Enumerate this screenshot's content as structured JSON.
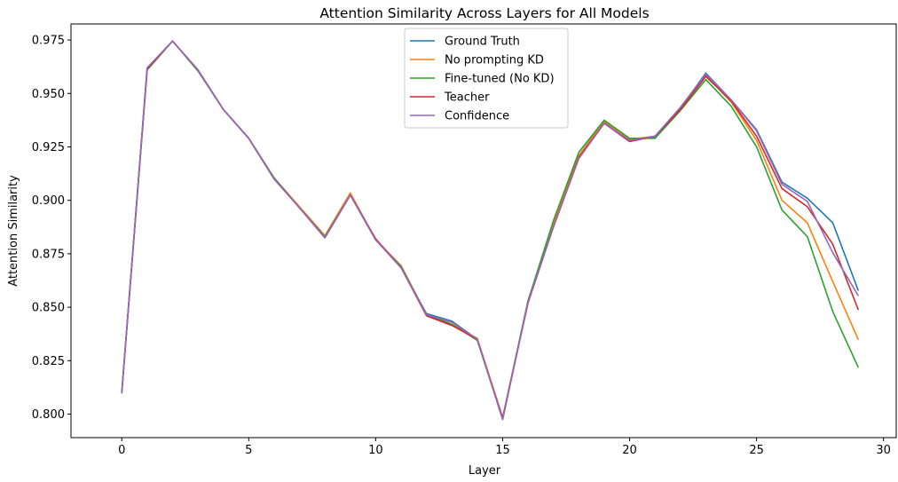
{
  "chart_data": {
    "type": "line",
    "title": "Attention Similarity Across Layers for All Models",
    "xlabel": "Layer",
    "ylabel": "Attention Similarity",
    "xlim": [
      -2,
      30.5
    ],
    "ylim": [
      0.789,
      0.9825
    ],
    "xticks": [
      0,
      5,
      10,
      15,
      20,
      25,
      30
    ],
    "yticks": [
      0.8,
      0.825,
      0.85,
      0.875,
      0.9,
      0.925,
      0.95,
      0.975
    ],
    "ytick_labels": [
      "0.800",
      "0.825",
      "0.850",
      "0.875",
      "0.900",
      "0.925",
      "0.950",
      "0.975"
    ],
    "grid": false,
    "legend_position": "top-center",
    "x": [
      0,
      1,
      2,
      3,
      4,
      5,
      6,
      7,
      8,
      9,
      10,
      11,
      12,
      13,
      14,
      15,
      16,
      17,
      18,
      19,
      20,
      21,
      22,
      23,
      24,
      25,
      26,
      27,
      28,
      29
    ],
    "series": [
      {
        "name": "Ground Truth",
        "color": "#1f77b4",
        "values": [
          0.81,
          0.962,
          0.9745,
          0.961,
          0.9425,
          0.929,
          0.91,
          0.8965,
          0.8825,
          0.9025,
          0.8815,
          0.8685,
          0.847,
          0.8435,
          0.835,
          0.7975,
          0.853,
          0.888,
          0.92,
          0.9365,
          0.928,
          0.9295,
          0.943,
          0.9595,
          0.947,
          0.933,
          0.9085,
          0.901,
          0.8895,
          0.858
        ]
      },
      {
        "name": "No prompting KD",
        "color": "#ff7f0e",
        "values": [
          0.81,
          0.961,
          0.9745,
          0.961,
          0.9425,
          0.929,
          0.9105,
          0.897,
          0.8835,
          0.9035,
          0.8815,
          0.8695,
          0.8465,
          0.842,
          0.8355,
          0.7985,
          0.853,
          0.889,
          0.921,
          0.937,
          0.9285,
          0.93,
          0.943,
          0.9585,
          0.946,
          0.928,
          0.9,
          0.8895,
          0.862,
          0.835
        ]
      },
      {
        "name": "Fine-tuned (No KD)",
        "color": "#2ca02c",
        "values": [
          0.81,
          0.961,
          0.9745,
          0.9605,
          0.9425,
          0.929,
          0.9105,
          0.8965,
          0.883,
          0.9025,
          0.8815,
          0.869,
          0.8465,
          0.842,
          0.8345,
          0.798,
          0.853,
          0.8905,
          0.9225,
          0.9375,
          0.929,
          0.929,
          0.942,
          0.9565,
          0.944,
          0.925,
          0.8955,
          0.883,
          0.848,
          0.822
        ]
      },
      {
        "name": "Teacher",
        "color": "#d62728",
        "values": [
          0.81,
          0.9615,
          0.9745,
          0.961,
          0.9425,
          0.929,
          0.91,
          0.8965,
          0.8825,
          0.9025,
          0.882,
          0.8685,
          0.846,
          0.8415,
          0.835,
          0.798,
          0.852,
          0.8875,
          0.92,
          0.936,
          0.9275,
          0.93,
          0.9425,
          0.958,
          0.9465,
          0.93,
          0.9055,
          0.897,
          0.8795,
          0.849
        ]
      },
      {
        "name": "Confidence",
        "color": "#9467bd",
        "values": [
          0.81,
          0.962,
          0.9745,
          0.961,
          0.9425,
          0.929,
          0.91,
          0.8965,
          0.8825,
          0.9025,
          0.8815,
          0.8685,
          0.8465,
          0.843,
          0.835,
          0.7975,
          0.8525,
          0.8875,
          0.9195,
          0.936,
          0.928,
          0.93,
          0.9435,
          0.959,
          0.947,
          0.9325,
          0.9075,
          0.8995,
          0.8755,
          0.8555
        ]
      }
    ]
  }
}
